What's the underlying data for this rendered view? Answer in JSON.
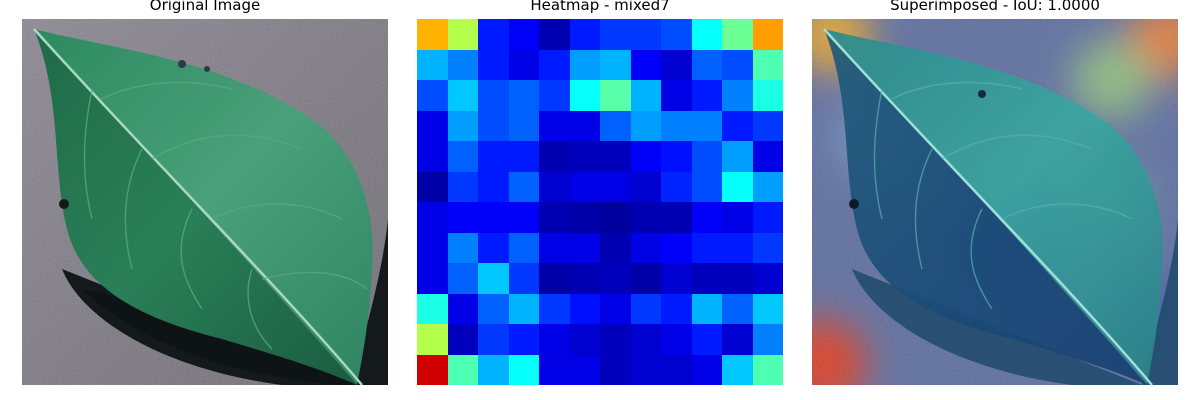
{
  "panels": {
    "original": {
      "title": "Original Image"
    },
    "heatmap": {
      "title": "Heatmap - mixed7",
      "colormap": "jet",
      "grid": [
        [
          0.7,
          0.55,
          0.15,
          0.12,
          0.05,
          0.15,
          0.18,
          0.18,
          0.2,
          0.38,
          0.48,
          0.72
        ],
        [
          0.3,
          0.25,
          0.15,
          0.1,
          0.15,
          0.28,
          0.3,
          0.12,
          0.08,
          0.22,
          0.2,
          0.45
        ],
        [
          0.2,
          0.32,
          0.2,
          0.22,
          0.18,
          0.38,
          0.46,
          0.3,
          0.1,
          0.15,
          0.25,
          0.4
        ],
        [
          0.1,
          0.28,
          0.2,
          0.22,
          0.1,
          0.1,
          0.22,
          0.28,
          0.25,
          0.25,
          0.15,
          0.18
        ],
        [
          0.1,
          0.22,
          0.15,
          0.15,
          0.05,
          0.06,
          0.06,
          0.12,
          0.14,
          0.2,
          0.28,
          0.1
        ],
        [
          0.04,
          0.18,
          0.15,
          0.22,
          0.08,
          0.1,
          0.1,
          0.08,
          0.16,
          0.2,
          0.38,
          0.28
        ],
        [
          0.1,
          0.12,
          0.12,
          0.12,
          0.05,
          0.04,
          0.03,
          0.05,
          0.05,
          0.12,
          0.1,
          0.15
        ],
        [
          0.1,
          0.25,
          0.15,
          0.22,
          0.1,
          0.1,
          0.05,
          0.1,
          0.12,
          0.15,
          0.15,
          0.18
        ],
        [
          0.1,
          0.22,
          0.32,
          0.18,
          0.04,
          0.05,
          0.06,
          0.04,
          0.08,
          0.06,
          0.06,
          0.08
        ],
        [
          0.4,
          0.1,
          0.22,
          0.3,
          0.18,
          0.14,
          0.1,
          0.18,
          0.15,
          0.3,
          0.22,
          0.32
        ],
        [
          0.55,
          0.06,
          0.18,
          0.15,
          0.1,
          0.08,
          0.06,
          0.08,
          0.1,
          0.15,
          0.08,
          0.25
        ],
        [
          0.92,
          0.45,
          0.3,
          0.38,
          0.1,
          0.1,
          0.06,
          0.08,
          0.08,
          0.1,
          0.32,
          0.45
        ]
      ]
    },
    "superimposed": {
      "title": "Superimposed - IoU: 1.0000"
    }
  },
  "colors": {
    "background": "#7d7882",
    "leaf_dark": "#1c5a3e",
    "leaf_mid": "#2f8a5e",
    "leaf_light": "#5fb890",
    "shadow": "#14181a",
    "overlay_base": "#3a6aa8"
  }
}
